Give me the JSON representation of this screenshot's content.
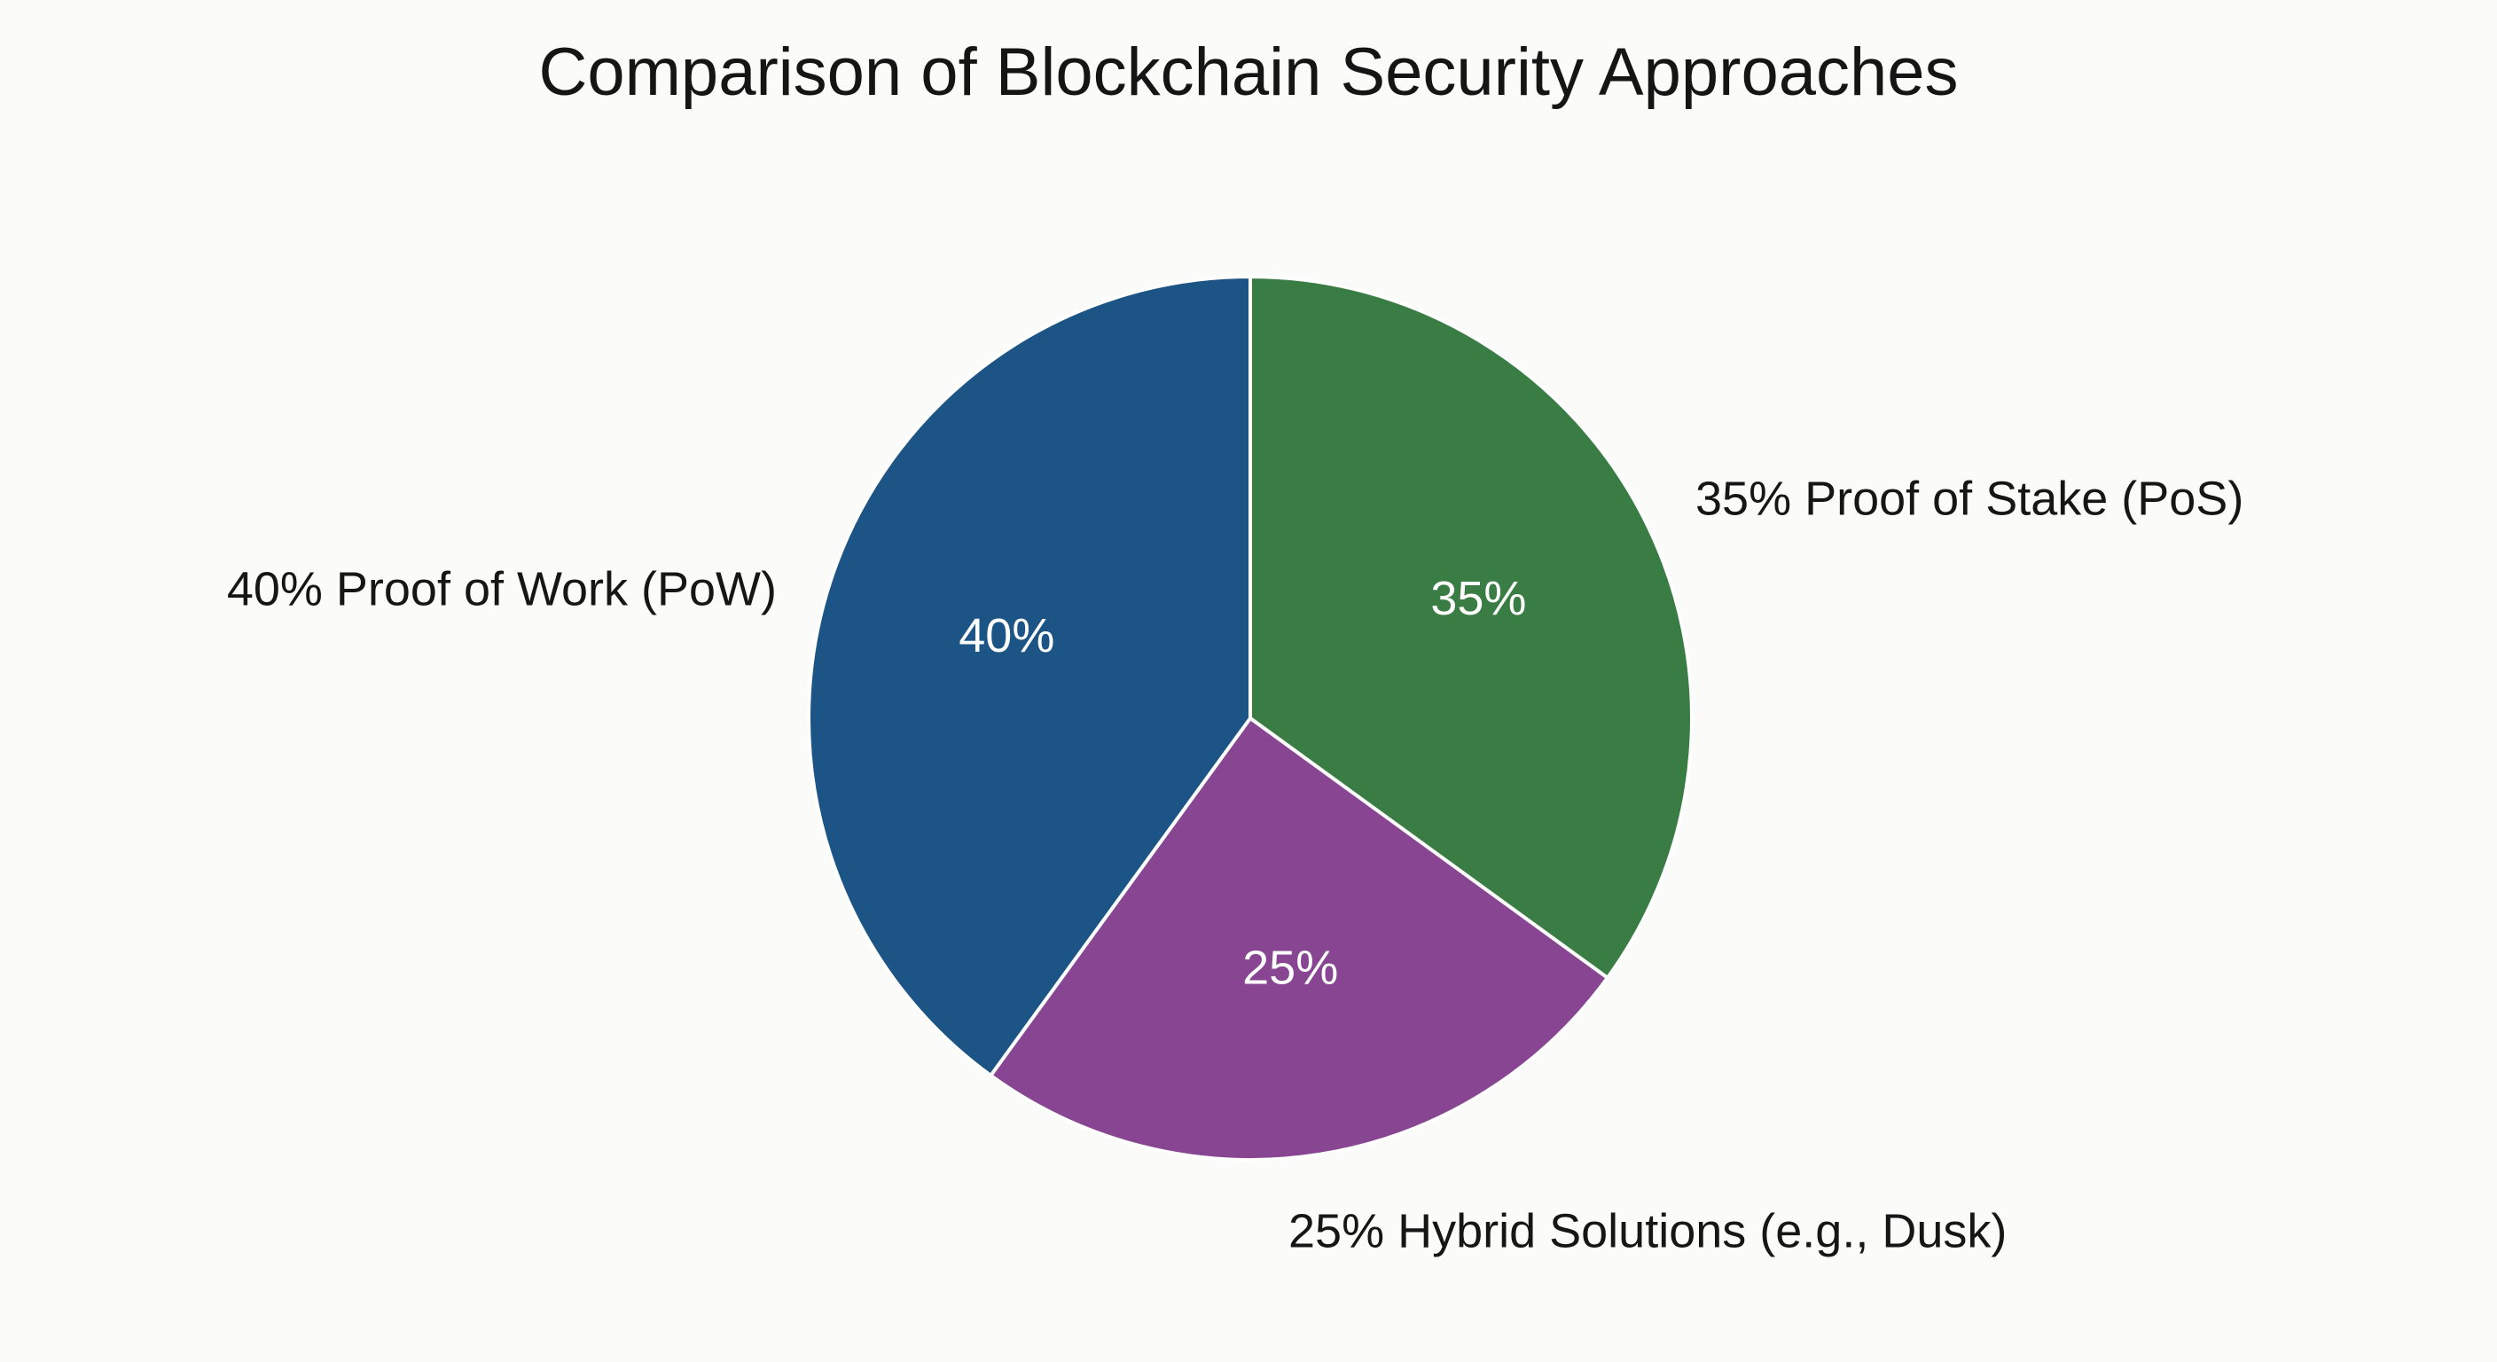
{
  "chart_data": {
    "type": "pie",
    "title": "Comparison of Blockchain Security Approaches",
    "slices": [
      {
        "name": "Proof of Work (PoW)",
        "value": 40,
        "value_label": "40%",
        "outer_label": "40% Proof of Work (PoW)",
        "color": "#1c5585"
      },
      {
        "name": "Proof of Stake (PoS)",
        "value": 35,
        "value_label": "35%",
        "outer_label": "35% Proof of Stake (PoS)",
        "color": "#3a7d44"
      },
      {
        "name": "Hybrid Solutions (e.g., Dusk)",
        "value": 25,
        "value_label": "25%",
        "outer_label": "25% Hybrid Solutions (e.g., Dusk)",
        "color": "#874592"
      }
    ],
    "legend": "none"
  },
  "colors": {
    "background": "#fbfbf9",
    "slice_border": "#ffffff"
  }
}
